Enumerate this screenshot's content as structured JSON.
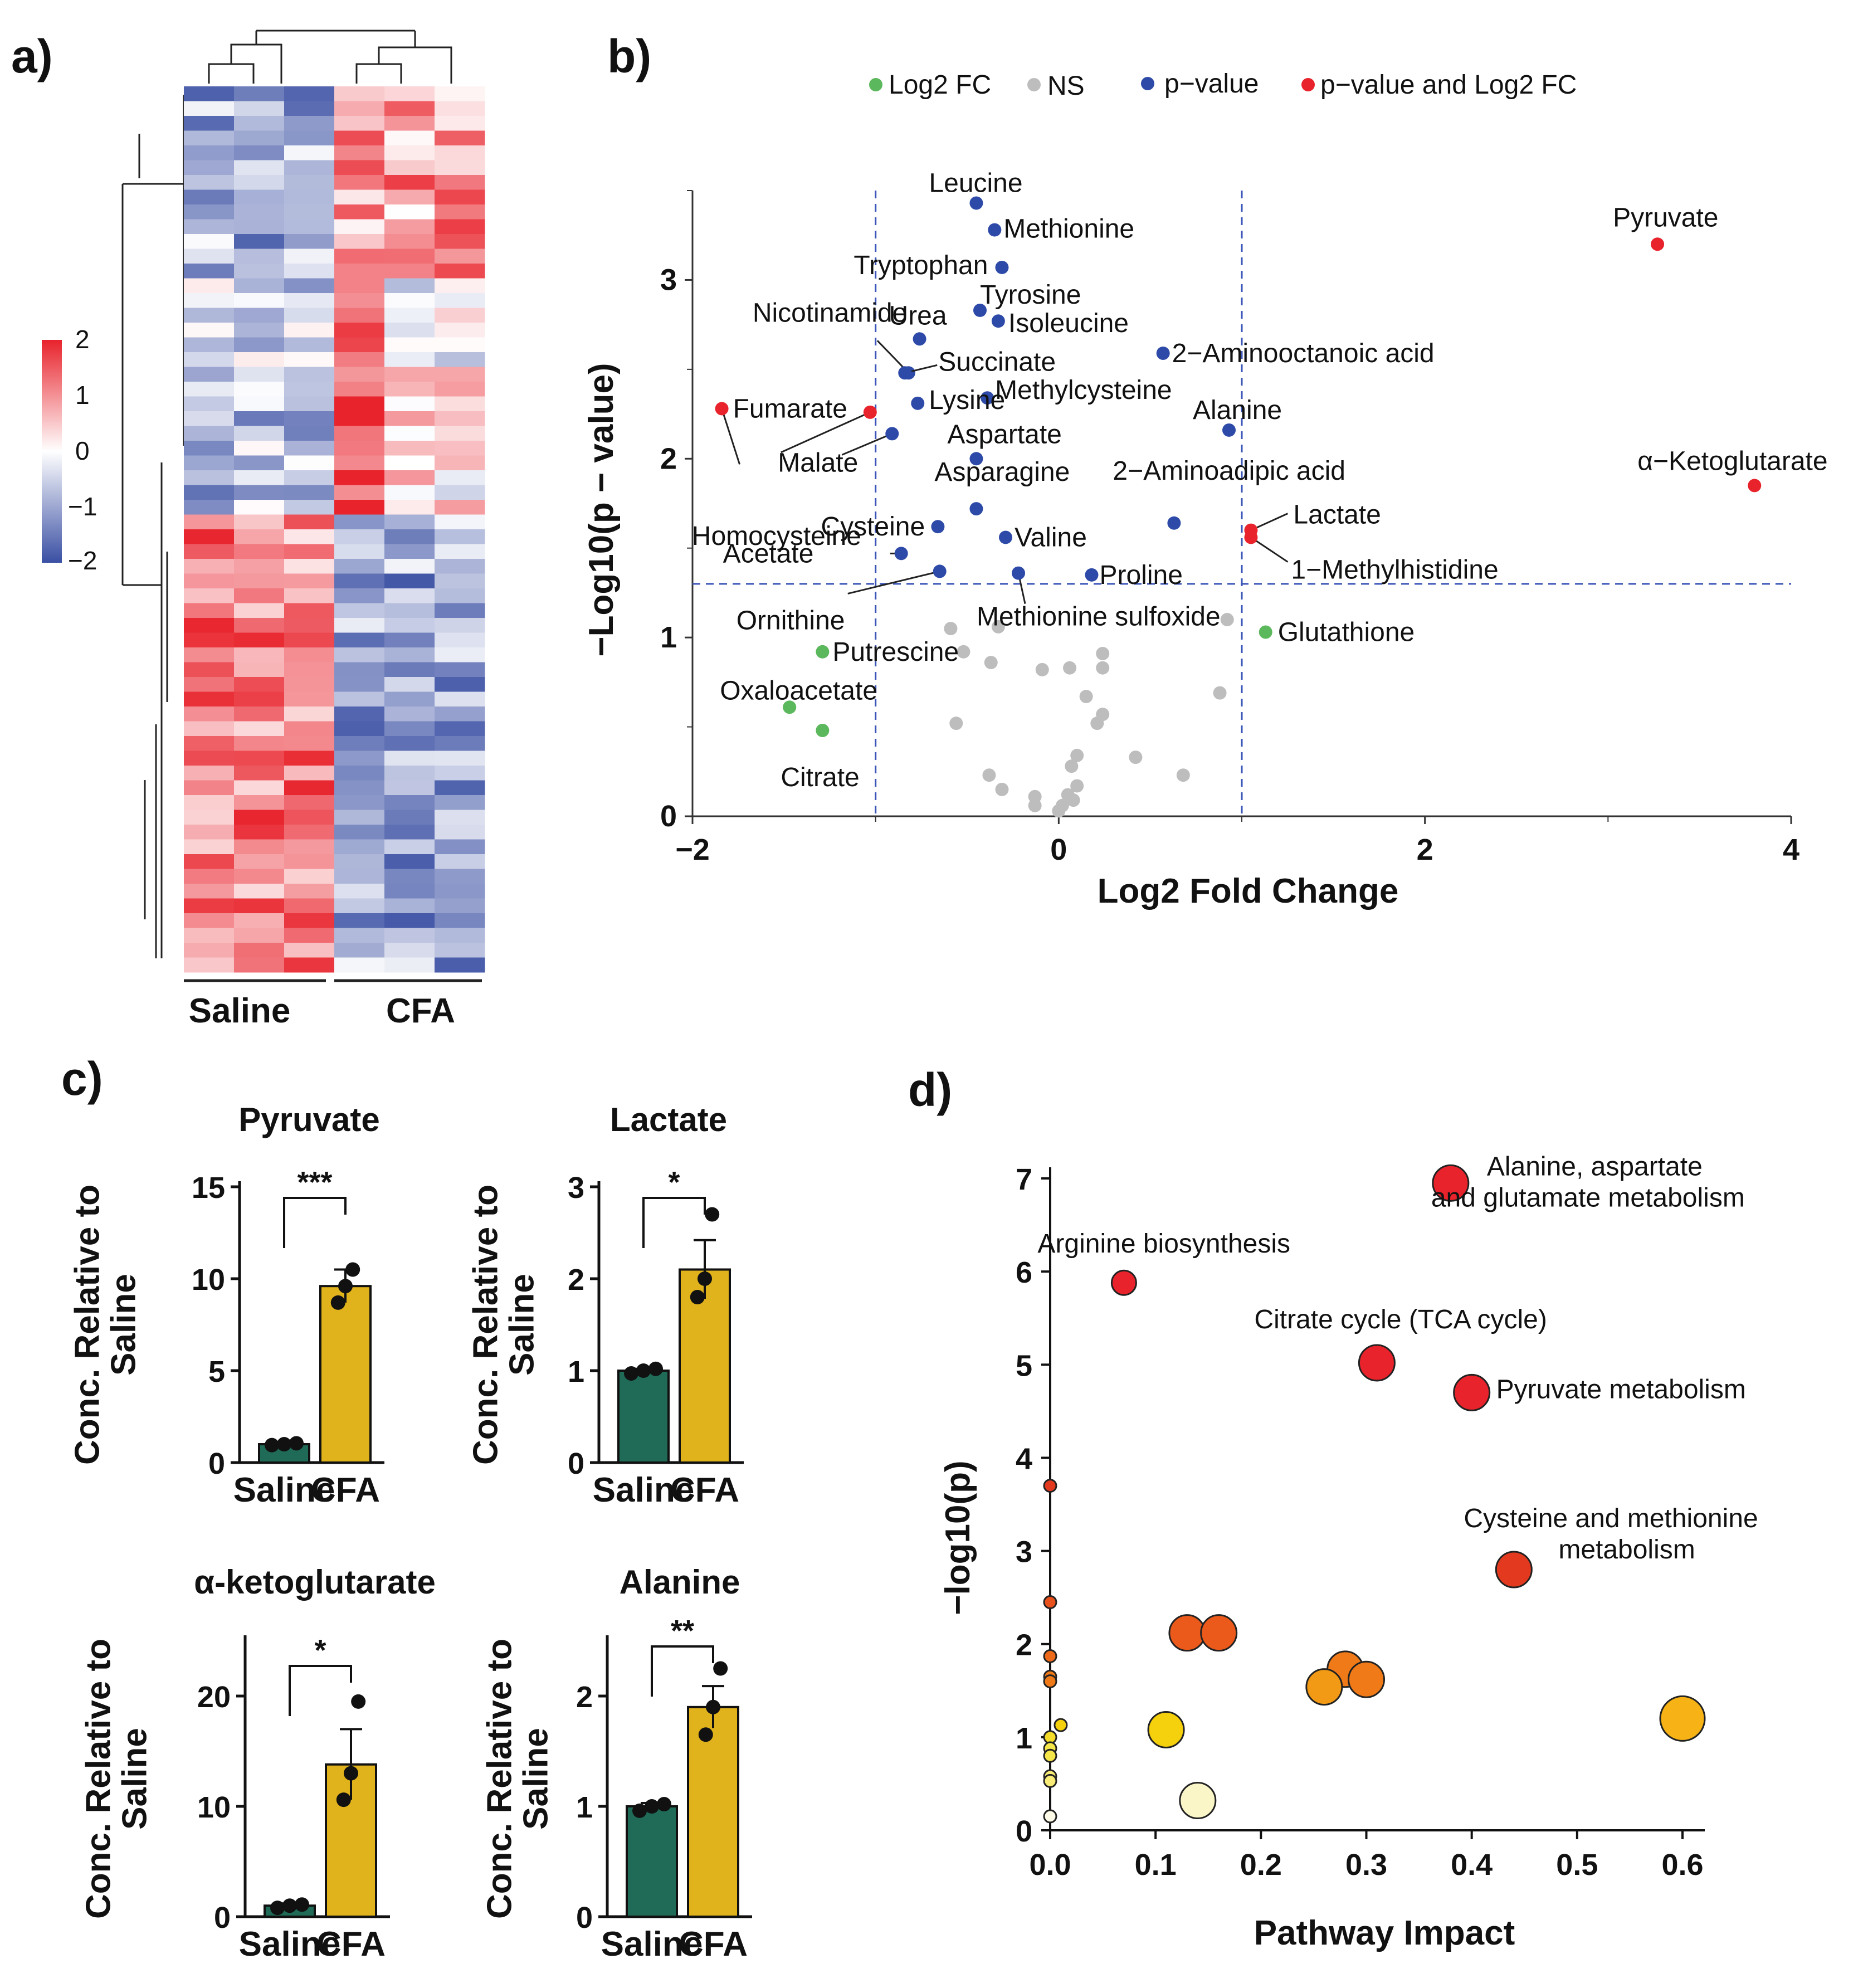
{
  "panels": {
    "a": "a)",
    "b": "b)",
    "c": "c)",
    "d": "d)"
  },
  "heatmap": {
    "groups": [
      "Saline",
      "CFA"
    ],
    "colorbar_ticks": [
      "2",
      "1",
      "0",
      "−1",
      "−2"
    ],
    "colors": {
      "high": "#e8232c",
      "mid": "#ffffff",
      "low": "#3a4fa3"
    }
  },
  "volcano": {
    "xlabel": "Log2 Fold Change",
    "ylabel": "−Log10(p − value)",
    "legend": [
      "Log2 FC",
      "NS",
      "p−value",
      "p−value and Log2 FC"
    ],
    "colors": {
      "fc": "#5cb85c",
      "ns": "#bdbdbd",
      "p": "#2e4aa8",
      "both": "#e8232c"
    }
  },
  "bars": {
    "ylabel_line1": "Conc. Relative to",
    "ylabel_line2": "Saline",
    "colors": {
      "saline": "#1f6b57",
      "cfa": "#e0b21c"
    }
  },
  "bubble": {
    "xlabel": "Pathway Impact",
    "ylabel": "−log10(p)"
  },
  "chart_data": [
    {
      "type": "heatmap",
      "title": "",
      "columns": [
        "Saline",
        "Saline",
        "Saline",
        "CFA",
        "CFA",
        "CFA"
      ],
      "scale_range": [
        -2,
        2
      ],
      "note": "60 metabolites clustered; rows are unlabeled"
    },
    {
      "type": "scatter",
      "title": "",
      "xlabel": "Log2 Fold Change",
      "ylabel": "−Log10(p − value)",
      "xlim": [
        -2,
        4
      ],
      "ylim": [
        0,
        3.5
      ],
      "xticks": [
        "−2",
        "0",
        "2",
        "4"
      ],
      "yticks": [
        "0",
        "1",
        "2",
        "3"
      ],
      "thresholds": {
        "x": [
          -1,
          1
        ],
        "y": 1.3
      },
      "labeled_points": [
        {
          "label": "Leucine",
          "x": -0.45,
          "y": 3.43,
          "group": "p"
        },
        {
          "label": "Methionine",
          "x": -0.35,
          "y": 3.28,
          "group": "p"
        },
        {
          "label": "Tryptophan",
          "x": -0.31,
          "y": 3.07,
          "group": "p"
        },
        {
          "label": "Tyrosine",
          "x": -0.43,
          "y": 2.83,
          "group": "p"
        },
        {
          "label": "Isoleucine",
          "x": -0.33,
          "y": 2.77,
          "group": "p"
        },
        {
          "label": "Urea",
          "x": -0.76,
          "y": 2.67,
          "group": "p"
        },
        {
          "label": "Nicotinamide",
          "x": -0.82,
          "y": 2.48,
          "group": "p"
        },
        {
          "label": "Succinate",
          "x": -0.84,
          "y": 2.48,
          "group": "p"
        },
        {
          "label": "2−Aminooctanoic acid",
          "x": 0.57,
          "y": 2.59,
          "group": "p"
        },
        {
          "label": "Methylcysteine",
          "x": -0.39,
          "y": 2.34,
          "group": "p"
        },
        {
          "label": "Alanine",
          "x": 0.93,
          "y": 2.16,
          "group": "p"
        },
        {
          "label": "Fumarate",
          "x": -1.84,
          "y": 2.28,
          "group": "both"
        },
        {
          "label": "Lysine",
          "x": -0.77,
          "y": 2.31,
          "group": "p"
        },
        {
          "label": "Homocysteine",
          "x": -1.03,
          "y": 2.26,
          "group": "both"
        },
        {
          "label": "Malate",
          "x": -0.91,
          "y": 2.14,
          "group": "p"
        },
        {
          "label": "Aspartate",
          "x": -0.45,
          "y": 2.0,
          "group": "p"
        },
        {
          "label": "Asparagine",
          "x": -0.45,
          "y": 1.72,
          "group": "p"
        },
        {
          "label": "Cysteine",
          "x": -0.66,
          "y": 1.62,
          "group": "p"
        },
        {
          "label": "Valine",
          "x": -0.29,
          "y": 1.56,
          "group": "p"
        },
        {
          "label": "Acetate",
          "x": -0.86,
          "y": 1.47,
          "group": "p"
        },
        {
          "label": "Ornithine",
          "x": -0.65,
          "y": 1.37,
          "group": "p"
        },
        {
          "label": "Methionine sulfoxide",
          "x": -0.22,
          "y": 1.36,
          "group": "p"
        },
        {
          "label": "Proline",
          "x": 0.18,
          "y": 1.35,
          "group": "p"
        },
        {
          "label": "2−Aminoadipic acid",
          "x": 0.63,
          "y": 1.64,
          "group": "p"
        },
        {
          "label": "Lactate",
          "x": 1.05,
          "y": 1.6,
          "group": "both"
        },
        {
          "label": "1−Methylhistidine",
          "x": 1.05,
          "y": 1.56,
          "group": "both"
        },
        {
          "label": "Pyruvate",
          "x": 3.27,
          "y": 3.2,
          "group": "both"
        },
        {
          "label": "α−Ketoglutarate",
          "x": 3.8,
          "y": 1.85,
          "group": "both"
        },
        {
          "label": "Glutathione",
          "x": 1.13,
          "y": 1.03,
          "group": "fc"
        },
        {
          "label": "Putrescine",
          "x": -1.29,
          "y": 0.92,
          "group": "fc"
        },
        {
          "label": "Oxaloacetate",
          "x": -1.47,
          "y": 0.61,
          "group": "fc"
        },
        {
          "label": "Citrate",
          "x": -1.29,
          "y": 0.48,
          "group": "fc"
        }
      ],
      "ns_points": [
        {
          "x": -0.59,
          "y": 1.05
        },
        {
          "x": -0.52,
          "y": 0.92
        },
        {
          "x": -0.33,
          "y": 1.06
        },
        {
          "x": -0.37,
          "y": 0.86
        },
        {
          "x": -0.09,
          "y": 0.82
        },
        {
          "x": 0.06,
          "y": 0.83
        },
        {
          "x": 0.24,
          "y": 0.91
        },
        {
          "x": 0.24,
          "y": 0.83
        },
        {
          "x": 0.15,
          "y": 0.67
        },
        {
          "x": 0.24,
          "y": 0.57
        },
        {
          "x": 0.21,
          "y": 0.52
        },
        {
          "x": 0.88,
          "y": 0.69
        },
        {
          "x": -0.56,
          "y": 0.52
        },
        {
          "x": 0.1,
          "y": 0.34
        },
        {
          "x": 0.42,
          "y": 0.33
        },
        {
          "x": 0.07,
          "y": 0.28
        },
        {
          "x": 0.68,
          "y": 0.23
        },
        {
          "x": -0.38,
          "y": 0.23
        },
        {
          "x": 0.1,
          "y": 0.17
        },
        {
          "x": -0.31,
          "y": 0.15
        },
        {
          "x": 0.05,
          "y": 0.12
        },
        {
          "x": 0.08,
          "y": 0.09
        },
        {
          "x": -0.13,
          "y": 0.11
        },
        {
          "x": 0.02,
          "y": 0.06
        },
        {
          "x": -0.13,
          "y": 0.06
        },
        {
          "x": 0.0,
          "y": 0.03
        },
        {
          "x": 0.92,
          "y": 1.1
        }
      ]
    },
    {
      "type": "bar",
      "title": "Pyruvate",
      "categories": [
        "Saline",
        "CFA"
      ],
      "values": [
        1.0,
        9.6
      ],
      "errors": [
        0.1,
        0.9
      ],
      "points": [
        [
          0.95,
          1.0,
          1.05
        ],
        [
          8.7,
          9.6,
          10.5
        ]
      ],
      "ylim": [
        0,
        15
      ],
      "yticks": [
        "0",
        "5",
        "10",
        "15"
      ],
      "significance": "***"
    },
    {
      "type": "bar",
      "title": "Lactate",
      "categories": [
        "Saline",
        "CFA"
      ],
      "values": [
        1.0,
        2.1
      ],
      "errors": [
        0.02,
        0.32
      ],
      "points": [
        [
          0.97,
          1.0,
          1.02
        ],
        [
          1.8,
          2.0,
          2.7
        ]
      ],
      "ylim": [
        0,
        3
      ],
      "yticks": [
        "0",
        "1",
        "2",
        "3"
      ],
      "significance": "*"
    },
    {
      "type": "bar",
      "title": "α-ketoglutarate",
      "categories": [
        "Saline",
        "CFA"
      ],
      "values": [
        1.0,
        13.8
      ],
      "errors": [
        0.2,
        3.2
      ],
      "points": [
        [
          0.8,
          1.0,
          1.1
        ],
        [
          10.6,
          13.0,
          19.5
        ]
      ],
      "ylim": [
        0,
        25
      ],
      "yticks": [
        "0",
        "10",
        "20"
      ],
      "significance": "*"
    },
    {
      "type": "bar",
      "title": "Alanine",
      "categories": [
        "Saline",
        "CFA"
      ],
      "values": [
        1.0,
        1.9
      ],
      "errors": [
        0.03,
        0.19
      ],
      "points": [
        [
          0.96,
          1.0,
          1.02
        ],
        [
          1.65,
          1.9,
          2.25
        ]
      ],
      "ylim": [
        0,
        2.5
      ],
      "yticks": [
        "0",
        "1",
        "2"
      ],
      "significance": "**"
    },
    {
      "type": "scatter",
      "title": "",
      "xlabel": "Pathway Impact",
      "ylabel": "−log10(p)",
      "xlim": [
        0,
        0.65
      ],
      "ylim": [
        0,
        7.5
      ],
      "xticks": [
        "0.0",
        "0.1",
        "0.2",
        "0.3",
        "0.4",
        "0.5",
        "0.6"
      ],
      "yticks": [
        "0",
        "1",
        "2",
        "3",
        "4",
        "5",
        "6",
        "7"
      ],
      "points": [
        {
          "label": "Alanine, aspartate and glutamate metabolism",
          "x": 0.38,
          "y": 6.95,
          "size": 3,
          "color": "#e8232c"
        },
        {
          "label": "Arginine biosynthesis",
          "x": 0.07,
          "y": 5.88,
          "size": 2,
          "color": "#e8232c"
        },
        {
          "label": "Citrate cycle (TCA cycle)",
          "x": 0.31,
          "y": 5.02,
          "size": 3,
          "color": "#e8232c"
        },
        {
          "label": "Pyruvate metabolism",
          "x": 0.4,
          "y": 4.7,
          "size": 3,
          "color": "#e8232c"
        },
        {
          "label": "Cysteine and methionine metabolism",
          "x": 0.44,
          "y": 2.8,
          "size": 3,
          "color": "#e33a1f"
        },
        {
          "label": "",
          "x": 0.0,
          "y": 3.7,
          "size": 1,
          "color": "#e33a1f"
        },
        {
          "label": "",
          "x": 0.0,
          "y": 2.45,
          "size": 1,
          "color": "#e8501c"
        },
        {
          "label": "",
          "x": 0.0,
          "y": 1.87,
          "size": 1,
          "color": "#ec6a1a"
        },
        {
          "label": "",
          "x": 0.0,
          "y": 1.65,
          "size": 1,
          "color": "#f07a18"
        },
        {
          "label": "",
          "x": 0.0,
          "y": 1.6,
          "size": 1,
          "color": "#f07a18"
        },
        {
          "label": "",
          "x": 0.13,
          "y": 2.12,
          "size": 3,
          "color": "#ec5a1b"
        },
        {
          "label": "",
          "x": 0.16,
          "y": 2.12,
          "size": 3,
          "color": "#ec5a1b"
        },
        {
          "label": "",
          "x": 0.28,
          "y": 1.73,
          "size": 3,
          "color": "#f07a18"
        },
        {
          "label": "",
          "x": 0.3,
          "y": 1.62,
          "size": 3,
          "color": "#f07a18"
        },
        {
          "label": "",
          "x": 0.26,
          "y": 1.54,
          "size": 3,
          "color": "#f29a16"
        },
        {
          "label": "",
          "x": 0.6,
          "y": 1.2,
          "size": 4,
          "color": "#f7b215"
        },
        {
          "label": "",
          "x": 0.11,
          "y": 1.08,
          "size": 3,
          "color": "#f5d00c"
        },
        {
          "label": "",
          "x": 0.01,
          "y": 1.13,
          "size": 1,
          "color": "#f5d00c"
        },
        {
          "label": "",
          "x": 0.0,
          "y": 1.0,
          "size": 1,
          "color": "#f5dc2a"
        },
        {
          "label": "",
          "x": 0.0,
          "y": 0.88,
          "size": 1,
          "color": "#f5e64a"
        },
        {
          "label": "",
          "x": 0.0,
          "y": 0.8,
          "size": 1,
          "color": "#f5e64a"
        },
        {
          "label": "",
          "x": 0.0,
          "y": 0.58,
          "size": 1,
          "color": "#f8ec77"
        },
        {
          "label": "",
          "x": 0.0,
          "y": 0.53,
          "size": 1,
          "color": "#f8ec77"
        },
        {
          "label": "",
          "x": 0.14,
          "y": 0.32,
          "size": 3,
          "color": "#fbf6c8"
        },
        {
          "label": "",
          "x": 0.0,
          "y": 0.15,
          "size": 1,
          "color": "#fdfbe8"
        }
      ]
    }
  ]
}
